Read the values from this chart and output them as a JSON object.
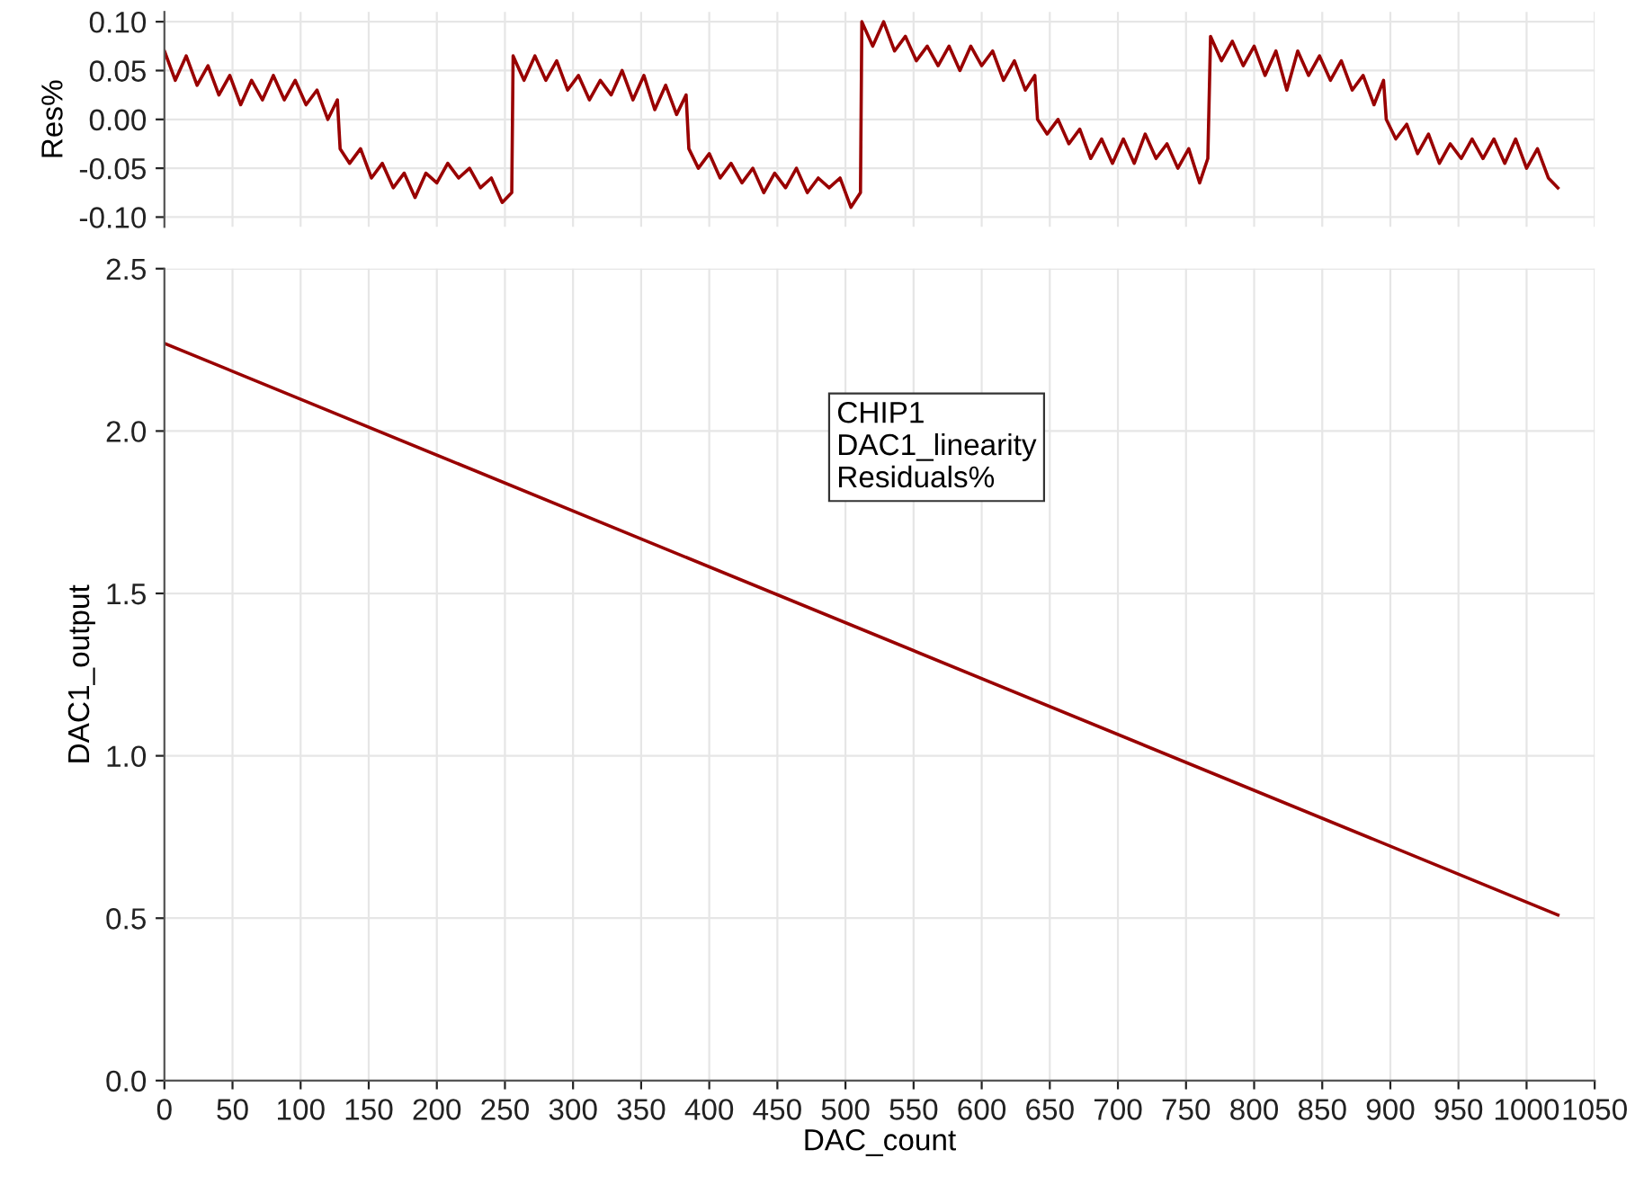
{
  "chart_data": [
    {
      "type": "line",
      "ylabel": "Res%",
      "xlim": [
        0,
        1050
      ],
      "xticks": [
        0,
        50,
        100,
        150,
        200,
        250,
        300,
        350,
        400,
        450,
        500,
        550,
        600,
        650,
        700,
        750,
        800,
        850,
        900,
        950,
        1000,
        1050
      ],
      "ylim": [
        -0.11,
        0.11
      ],
      "yticks": [
        {
          "value": 0.1,
          "label": "0.10"
        },
        {
          "value": 0.05,
          "label": "0.05"
        },
        {
          "value": 0,
          "label": "0.00"
        },
        {
          "value": -0.05,
          "label": "-0.05"
        },
        {
          "value": -0.1,
          "label": "-0.10"
        }
      ],
      "tick_labels": "y",
      "grid": true,
      "legend": false,
      "marker": "none",
      "line_style": "solid",
      "series": [
        {
          "color": "#990000",
          "x": [
            0,
            8,
            16,
            24,
            32,
            40,
            48,
            56,
            64,
            72,
            80,
            88,
            96,
            104,
            112,
            120,
            127,
            129,
            136,
            144,
            152,
            160,
            168,
            176,
            184,
            192,
            200,
            208,
            216,
            224,
            232,
            240,
            248,
            255,
            256,
            264,
            272,
            280,
            288,
            296,
            304,
            312,
            320,
            328,
            336,
            344,
            352,
            360,
            368,
            376,
            383,
            385,
            392,
            400,
            408,
            416,
            424,
            432,
            440,
            448,
            456,
            464,
            472,
            480,
            488,
            496,
            504,
            511,
            512,
            520,
            528,
            536,
            544,
            552,
            560,
            568,
            576,
            584,
            592,
            600,
            608,
            616,
            624,
            632,
            639,
            641,
            648,
            656,
            664,
            672,
            680,
            688,
            696,
            704,
            712,
            720,
            728,
            736,
            744,
            752,
            760,
            766,
            768,
            776,
            784,
            792,
            800,
            808,
            816,
            824,
            832,
            840,
            848,
            856,
            864,
            872,
            880,
            888,
            895,
            897,
            904,
            912,
            920,
            928,
            936,
            944,
            952,
            960,
            968,
            976,
            984,
            992,
            1000,
            1008,
            1016,
            1023
          ],
          "values": [
            0.07,
            0.04,
            0.065,
            0.035,
            0.055,
            0.025,
            0.045,
            0.015,
            0.04,
            0.02,
            0.045,
            0.02,
            0.04,
            0.015,
            0.03,
            0.0,
            0.02,
            -0.03,
            -0.045,
            -0.03,
            -0.06,
            -0.045,
            -0.07,
            -0.055,
            -0.08,
            -0.055,
            -0.065,
            -0.045,
            -0.06,
            -0.05,
            -0.07,
            -0.06,
            -0.085,
            -0.075,
            0.065,
            0.04,
            0.065,
            0.04,
            0.06,
            0.03,
            0.045,
            0.02,
            0.04,
            0.025,
            0.05,
            0.02,
            0.045,
            0.01,
            0.035,
            0.005,
            0.025,
            -0.03,
            -0.05,
            -0.035,
            -0.06,
            -0.045,
            -0.065,
            -0.05,
            -0.075,
            -0.055,
            -0.07,
            -0.05,
            -0.075,
            -0.06,
            -0.07,
            -0.06,
            -0.09,
            -0.075,
            0.1,
            0.075,
            0.1,
            0.07,
            0.085,
            0.06,
            0.075,
            0.055,
            0.075,
            0.05,
            0.075,
            0.055,
            0.07,
            0.04,
            0.06,
            0.03,
            0.045,
            0.0,
            -0.015,
            0.0,
            -0.025,
            -0.01,
            -0.04,
            -0.02,
            -0.045,
            -0.02,
            -0.045,
            -0.015,
            -0.04,
            -0.025,
            -0.05,
            -0.03,
            -0.065,
            -0.04,
            0.085,
            0.06,
            0.08,
            0.055,
            0.075,
            0.045,
            0.07,
            0.03,
            0.07,
            0.045,
            0.065,
            0.04,
            0.06,
            0.03,
            0.045,
            0.015,
            0.04,
            0.0,
            -0.02,
            -0.005,
            -0.035,
            -0.015,
            -0.045,
            -0.025,
            -0.04,
            -0.02,
            -0.04,
            -0.02,
            -0.045,
            -0.02,
            -0.05,
            -0.03,
            -0.06,
            -0.07
          ]
        }
      ]
    },
    {
      "type": "line",
      "xlabel": "DAC_count",
      "ylabel": "DAC1_output",
      "xlim": [
        0,
        1050
      ],
      "xticks": [
        0,
        50,
        100,
        150,
        200,
        250,
        300,
        350,
        400,
        450,
        500,
        550,
        600,
        650,
        700,
        750,
        800,
        850,
        900,
        950,
        1000,
        1050
      ],
      "ylim": [
        0,
        2.5
      ],
      "yticks": [
        {
          "value": 0,
          "label": "0.0"
        },
        {
          "value": 0.5,
          "label": "0.5"
        },
        {
          "value": 1,
          "label": "1.0"
        },
        {
          "value": 1.5,
          "label": "1.5"
        },
        {
          "value": 2,
          "label": "2.0"
        },
        {
          "value": 2.5,
          "label": "2.5"
        }
      ],
      "grid": true,
      "legend": false,
      "marker": "none",
      "line_style": "solid",
      "annotations": [
        "CHIP1\nDAC1_linearity\nResiduals%"
      ],
      "series": [
        {
          "color": "#990000",
          "x": [
            0,
            1023
          ],
          "values": [
            2.27,
            0.51
          ]
        }
      ]
    }
  ]
}
